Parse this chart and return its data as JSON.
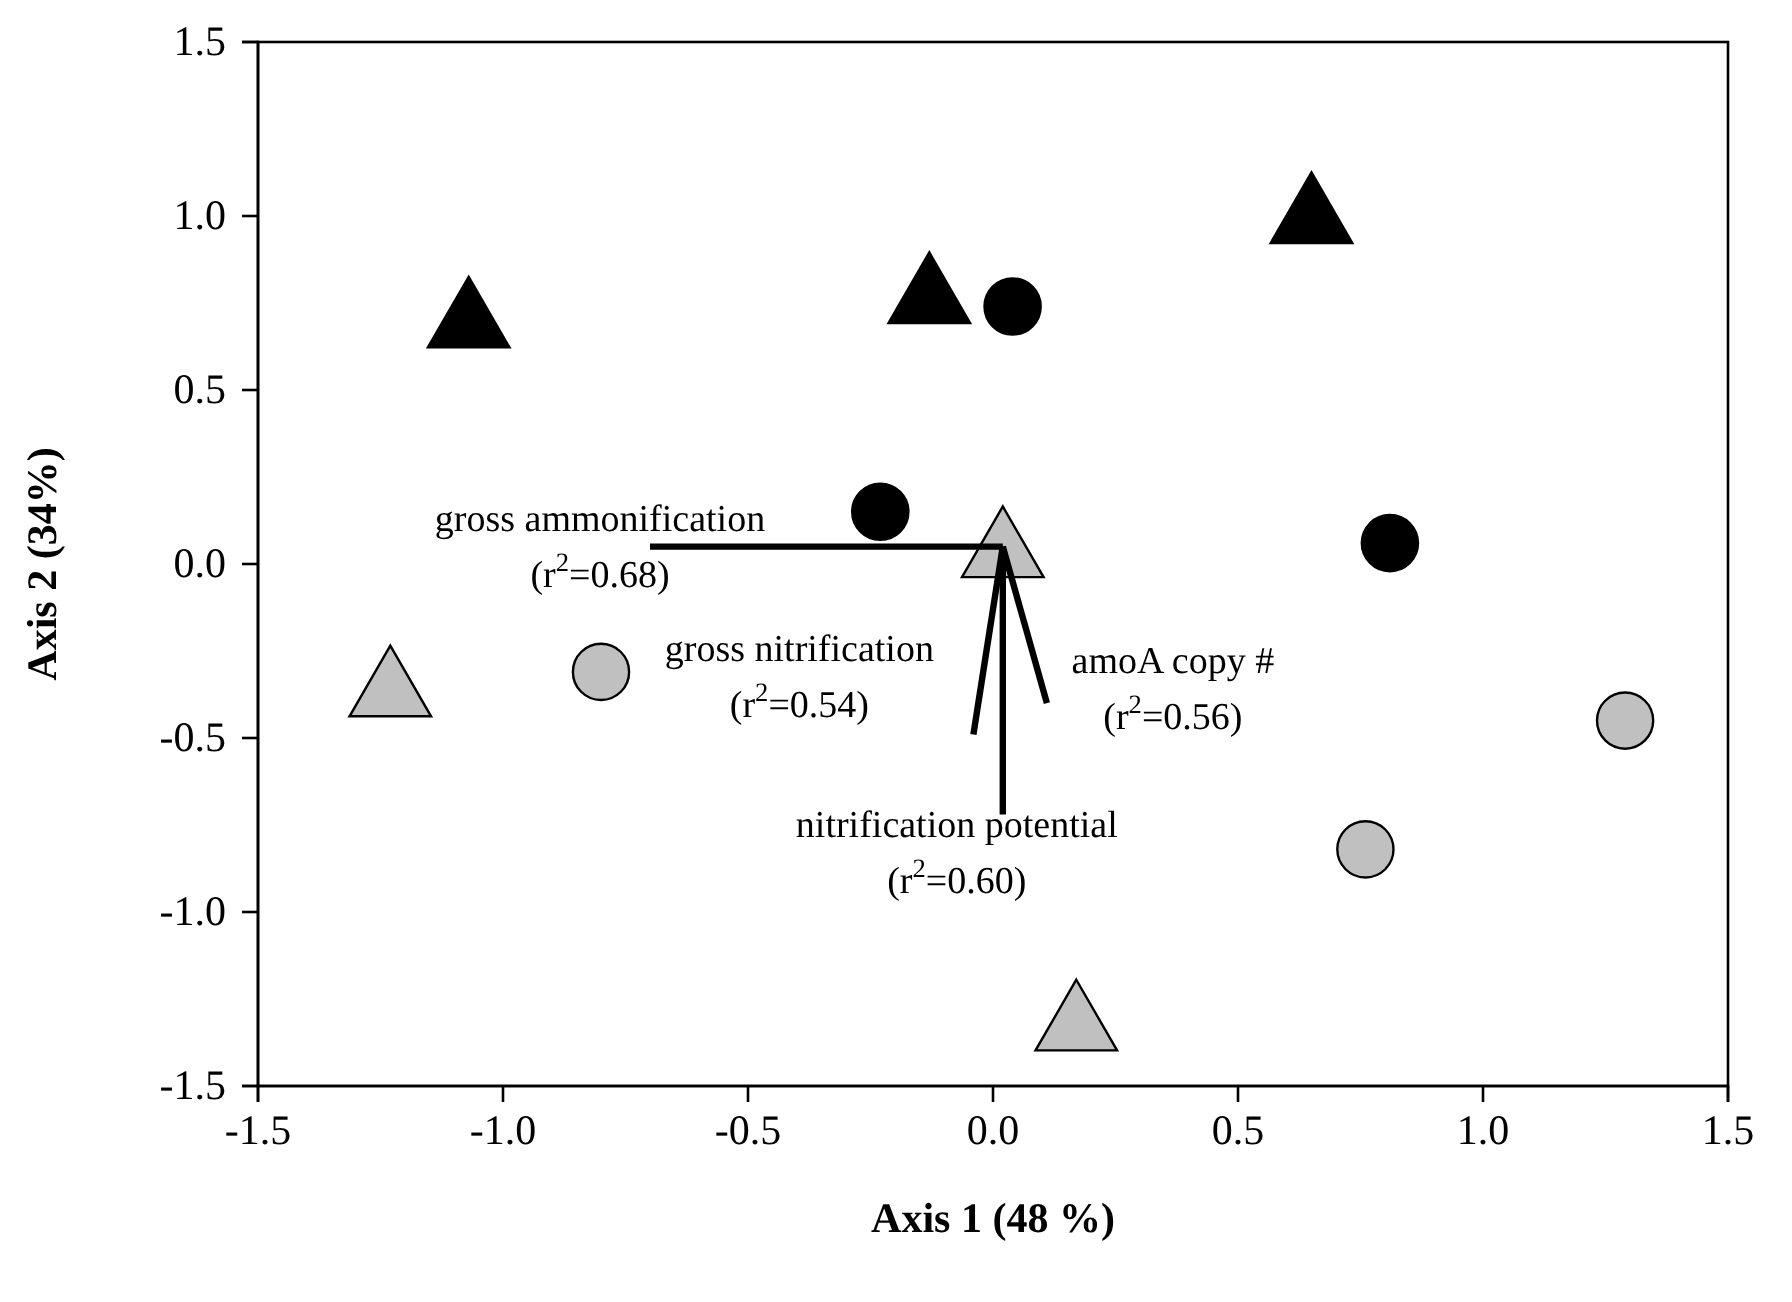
{
  "chart_data": {
    "type": "scatter",
    "xlabel": "Axis 1 (48 %)",
    "ylabel": "Axis 2 (34%)",
    "xlim": [
      -1.5,
      1.5
    ],
    "ylim": [
      -1.5,
      1.5
    ],
    "xticks": [
      {
        "value": -1.5,
        "label": "-1.5"
      },
      {
        "value": -1,
        "label": "-1.0"
      },
      {
        "value": -0.5,
        "label": "-0.5"
      },
      {
        "value": 0,
        "label": "0.0"
      },
      {
        "value": 0.5,
        "label": "0.5"
      },
      {
        "value": 1,
        "label": "1.0"
      },
      {
        "value": 1.5,
        "label": "1.5"
      }
    ],
    "yticks": [
      {
        "value": -1.5,
        "label": "-1.5"
      },
      {
        "value": -1,
        "label": "-1.0"
      },
      {
        "value": -0.5,
        "label": "-0.5"
      },
      {
        "value": 0,
        "label": "0.0"
      },
      {
        "value": 0.5,
        "label": "0.5"
      },
      {
        "value": 1,
        "label": "1.0"
      },
      {
        "value": 1.5,
        "label": "1.5"
      }
    ],
    "grid": false,
    "legend": false,
    "series": [
      {
        "color": "#000000",
        "marker": "triangle",
        "x": [
          -1.07,
          -0.13,
          0.65
        ],
        "values": [
          0.69,
          0.76,
          0.99
        ]
      },
      {
        "color": "#000000",
        "marker": "circle",
        "x": [
          0.04,
          -0.23,
          0.81
        ],
        "values": [
          0.74,
          0.15,
          0.06
        ]
      },
      {
        "color": "#c0c0c0",
        "marker": "triangle",
        "x": [
          0.02,
          -1.23,
          0.17
        ],
        "values": [
          0.03,
          -0.37,
          -1.33
        ]
      },
      {
        "color": "#c0c0c0",
        "marker": "circle",
        "x": [
          -0.8,
          1.29,
          0.76
        ],
        "values": [
          -0.31,
          -0.45,
          -0.82
        ]
      },
      {
        "type": "line",
        "name": "gross ammonification (r$^{2}$=0.68)",
        "color": "#000000",
        "x": [
          0.02,
          -0.7
        ],
        "values": [
          0.05,
          0.05
        ],
        "marker": "none"
      },
      {
        "type": "line",
        "name": "gross nitrification (r$^{2}$=0.54)",
        "color": "#000000",
        "x": [
          0.02,
          -0.04
        ],
        "values": [
          0.05,
          -0.49
        ],
        "marker": "none"
      },
      {
        "type": "line",
        "name": "amoA copy # (r$^{2}$=0.56)",
        "color": "#000000",
        "x": [
          0.02,
          0.11
        ],
        "values": [
          0.05,
          -0.4
        ],
        "marker": "none"
      },
      {
        "type": "line",
        "name": "nitrification potential (r$^{2}$=0.60)",
        "color": "#000000",
        "x": [
          0.02,
          0.02
        ],
        "values": [
          0.05,
          -0.72
        ],
        "marker": "none"
      }
    ]
  }
}
